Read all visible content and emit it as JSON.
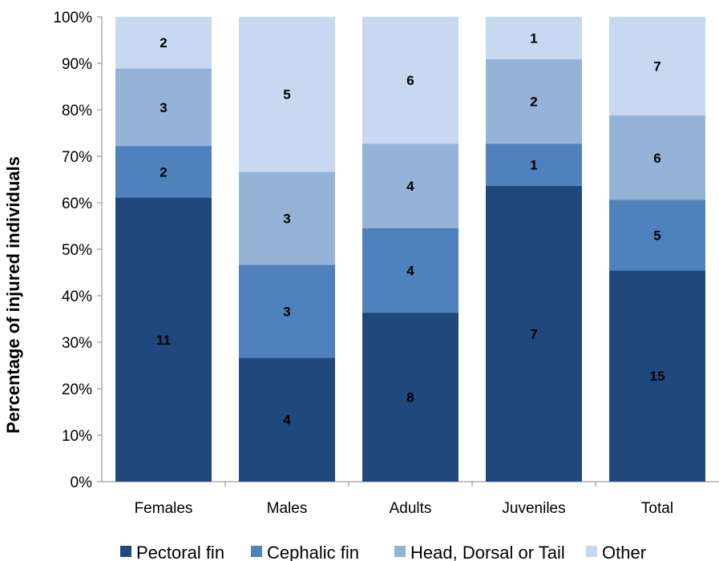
{
  "chart_data": {
    "type": "bar",
    "stacked": true,
    "normalized_percent": true,
    "ylabel": "Percentage of injured individuals",
    "ylim": [
      0,
      100
    ],
    "yticks": [
      "0%",
      "10%",
      "20%",
      "30%",
      "40%",
      "50%",
      "60%",
      "70%",
      "80%",
      "90%",
      "100%"
    ],
    "categories": [
      "Females",
      "Males",
      "Adults",
      "Juveniles",
      "Total"
    ],
    "series": [
      {
        "name": "Pectoral fin",
        "color": "#1f497d",
        "values": [
          11,
          4,
          8,
          7,
          15
        ]
      },
      {
        "name": "Cephalic fin",
        "color": "#4f81bd",
        "values": [
          2,
          3,
          4,
          1,
          5
        ]
      },
      {
        "name": "Head, Dorsal or Tail",
        "color": "#95b3d7",
        "values": [
          3,
          3,
          4,
          2,
          6
        ]
      },
      {
        "name": "Other",
        "color": "#c6d9f1",
        "values": [
          2,
          5,
          6,
          1,
          7
        ]
      }
    ],
    "legend_position": "bottom",
    "grid": false
  }
}
